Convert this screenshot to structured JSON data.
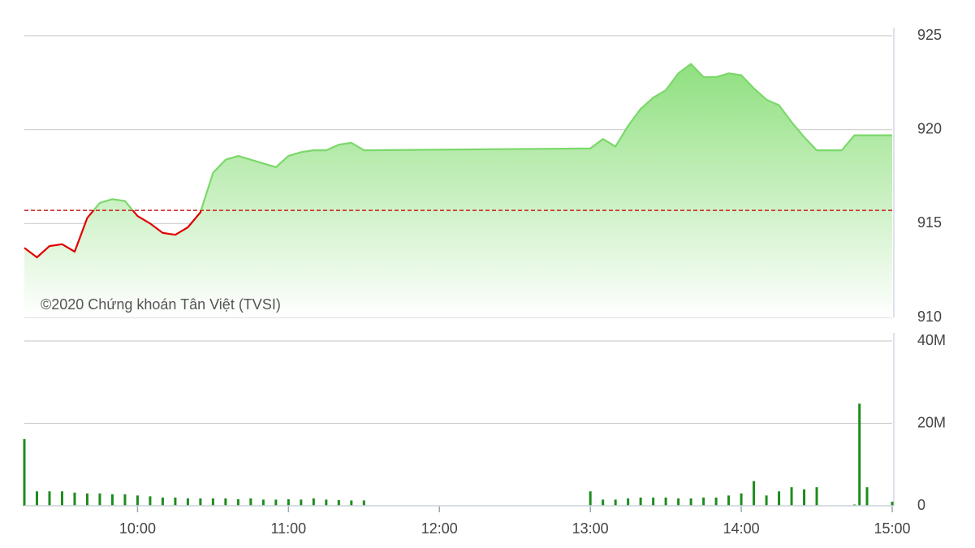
{
  "chart_data": [
    {
      "type": "line",
      "annotation": "©2020 Chứng khoán Tân Việt (TVSI)",
      "x": [
        "09:15",
        "09:20",
        "09:25",
        "09:30",
        "09:35",
        "09:40",
        "09:45",
        "09:50",
        "09:55",
        "10:00",
        "10:05",
        "10:10",
        "10:15",
        "10:20",
        "10:25",
        "10:30",
        "10:35",
        "10:40",
        "10:45",
        "10:50",
        "10:55",
        "11:00",
        "11:05",
        "11:10",
        "11:15",
        "11:20",
        "11:25",
        "11:30",
        "13:00",
        "13:05",
        "13:10",
        "13:15",
        "13:20",
        "13:25",
        "13:30",
        "13:35",
        "13:40",
        "13:45",
        "13:50",
        "13:55",
        "14:00",
        "14:05",
        "14:10",
        "14:15",
        "14:20",
        "14:25",
        "14:30",
        "14:35",
        "14:40",
        "14:45",
        "15:00"
      ],
      "values": [
        913.7,
        913.2,
        913.8,
        913.9,
        913.5,
        915.3,
        916.1,
        916.3,
        916.2,
        915.4,
        915.0,
        914.5,
        914.4,
        914.8,
        915.6,
        917.7,
        918.4,
        918.6,
        918.4,
        918.2,
        918.0,
        918.6,
        918.8,
        918.9,
        918.9,
        919.2,
        919.3,
        918.9,
        919.0,
        919.5,
        919.1,
        920.2,
        921.1,
        921.7,
        922.1,
        923.0,
        923.5,
        922.8,
        922.8,
        923.0,
        922.9,
        922.2,
        921.6,
        921.3,
        920.4,
        919.6,
        918.9,
        918.9,
        918.9,
        919.7,
        919.7
      ],
      "color": "#7bd86a",
      "below_color": "#e00000",
      "reference": 915.7,
      "reference_color": "#c8201e",
      "xlim": [
        "09:15",
        "15:00"
      ],
      "ylim": [
        910,
        925
      ],
      "yticks": [
        910,
        915,
        920,
        925
      ],
      "grid": true
    },
    {
      "type": "bar",
      "x": [
        "09:15",
        "09:20",
        "09:25",
        "09:30",
        "09:35",
        "09:40",
        "09:45",
        "09:50",
        "09:55",
        "10:00",
        "10:05",
        "10:10",
        "10:15",
        "10:20",
        "10:25",
        "10:30",
        "10:35",
        "10:40",
        "10:45",
        "10:50",
        "10:55",
        "11:00",
        "11:05",
        "11:10",
        "11:15",
        "11:20",
        "11:25",
        "11:30",
        "13:00",
        "13:05",
        "13:10",
        "13:15",
        "13:20",
        "13:25",
        "13:30",
        "13:35",
        "13:40",
        "13:45",
        "13:50",
        "13:55",
        "14:00",
        "14:05",
        "14:10",
        "14:15",
        "14:20",
        "14:25",
        "14:30",
        "14:45",
        "14:47",
        "14:50",
        "15:00"
      ],
      "values": [
        16200000,
        3500000,
        3500000,
        3500000,
        3200000,
        3000000,
        3000000,
        2800000,
        2800000,
        2500000,
        2300000,
        2000000,
        2000000,
        1800000,
        1800000,
        1800000,
        1800000,
        1600000,
        1800000,
        1500000,
        1500000,
        1600000,
        1500000,
        1800000,
        1500000,
        1400000,
        1300000,
        1300000,
        3500000,
        1500000,
        1500000,
        1800000,
        2000000,
        2000000,
        2000000,
        1800000,
        1800000,
        2000000,
        2000000,
        2500000,
        3000000,
        6000000,
        2500000,
        3500000,
        4500000,
        4000000,
        4500000,
        300000,
        24800000,
        4500000,
        1000000
      ],
      "color": "#1e8c1e",
      "xlim": [
        "09:15",
        "15:00"
      ],
      "xticks": [
        "10:00",
        "11:00",
        "12:00",
        "13:00",
        "14:00",
        "15:00"
      ],
      "ylim": [
        0,
        40000000
      ],
      "yticks": [
        0,
        {
          "value": 20000000,
          "label": "20M"
        },
        {
          "value": 40000000,
          "label": "40M"
        }
      ],
      "grid": true
    }
  ]
}
